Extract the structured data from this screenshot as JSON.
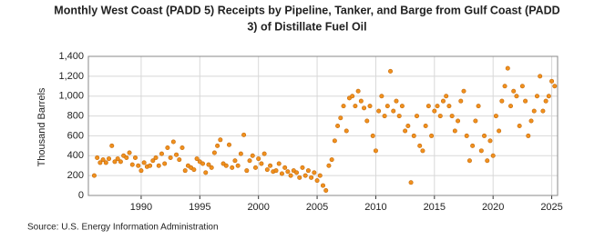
{
  "chart_data": {
    "type": "scatter",
    "title": "Monthly West Coast (PADD 5) Receipts by Pipeline, Tanker, and Barge from Gulf Coast (PADD 3) of Distillate Fuel Oil",
    "ylabel": "Thousand Barrels",
    "source": "Source: U.S. Energy Information Administration",
    "color": "#f0901e",
    "grid": true,
    "xlim": [
      1985.5,
      2025.5
    ],
    "ylim": [
      0,
      1400
    ],
    "xticks": [
      1990,
      1995,
      2000,
      2005,
      2010,
      2015,
      2020,
      2025
    ],
    "yticks": [
      0,
      200,
      400,
      600,
      800,
      {
        "value": 1000,
        "label": "1,000"
      },
      {
        "value": 1200,
        "label": "1,200"
      },
      {
        "value": 1400,
        "label": "1,400"
      }
    ],
    "x": [
      1986,
      1986.25,
      1986.5,
      1986.75,
      1987,
      1987.25,
      1987.5,
      1987.75,
      1988,
      1988.25,
      1988.5,
      1988.75,
      1989,
      1989.25,
      1989.5,
      1989.75,
      1990,
      1990.25,
      1990.5,
      1990.75,
      1991,
      1991.25,
      1991.5,
      1991.75,
      1992,
      1992.25,
      1992.5,
      1992.75,
      1993,
      1993.25,
      1993.5,
      1993.75,
      1994,
      1994.25,
      1994.5,
      1994.75,
      1995,
      1995.25,
      1995.5,
      1995.75,
      1996,
      1996.25,
      1996.5,
      1996.75,
      1997,
      1997.25,
      1997.5,
      1997.75,
      1998,
      1998.25,
      1998.5,
      1998.75,
      1999,
      1999.25,
      1999.5,
      1999.75,
      2000,
      2000.25,
      2000.5,
      2000.75,
      2001,
      2001.25,
      2001.5,
      2001.75,
      2002,
      2002.25,
      2002.5,
      2002.75,
      2003,
      2003.25,
      2003.5,
      2003.75,
      2004,
      2004.25,
      2004.5,
      2004.75,
      2005,
      2005.25,
      2005.5,
      2005.75,
      2006,
      2006.25,
      2006.5,
      2006.75,
      2007,
      2007.25,
      2007.5,
      2007.75,
      2008,
      2008.25,
      2008.5,
      2008.75,
      2009,
      2009.25,
      2009.5,
      2009.75,
      2010,
      2010.25,
      2010.5,
      2010.75,
      2011,
      2011.25,
      2011.5,
      2011.75,
      2012,
      2012.25,
      2012.5,
      2012.75,
      2013,
      2013.25,
      2013.5,
      2013.75,
      2014,
      2014.25,
      2014.5,
      2014.75,
      2015,
      2015.25,
      2015.5,
      2015.75,
      2016,
      2016.25,
      2016.5,
      2016.75,
      2017,
      2017.25,
      2017.5,
      2017.75,
      2018,
      2018.25,
      2018.5,
      2018.75,
      2019,
      2019.25,
      2019.5,
      2019.75,
      2020,
      2020.25,
      2020.5,
      2020.75,
      2021,
      2021.25,
      2021.5,
      2021.75,
      2022,
      2022.25,
      2022.5,
      2022.75,
      2023,
      2023.25,
      2023.5,
      2023.75,
      2024,
      2024.25,
      2024.5,
      2024.75,
      2025,
      2025.25
    ],
    "values": [
      200,
      380,
      330,
      360,
      330,
      370,
      500,
      340,
      370,
      340,
      400,
      380,
      430,
      310,
      380,
      300,
      250,
      330,
      290,
      300,
      350,
      380,
      300,
      420,
      320,
      480,
      380,
      540,
      410,
      360,
      480,
      250,
      300,
      280,
      260,
      370,
      340,
      320,
      230,
      310,
      280,
      430,
      500,
      560,
      320,
      300,
      510,
      280,
      350,
      300,
      420,
      610,
      250,
      350,
      400,
      280,
      370,
      320,
      420,
      260,
      300,
      240,
      250,
      320,
      220,
      280,
      240,
      200,
      250,
      230,
      180,
      280,
      200,
      250,
      180,
      230,
      150,
      200,
      100,
      50,
      300,
      360,
      550,
      700,
      780,
      900,
      650,
      980,
      1000,
      900,
      1050,
      950,
      880,
      750,
      900,
      600,
      450,
      850,
      1000,
      800,
      900,
      1250,
      850,
      950,
      800,
      900,
      650,
      700,
      130,
      600,
      800,
      500,
      450,
      700,
      900,
      600,
      850,
      900,
      800,
      950,
      1000,
      900,
      800,
      650,
      750,
      950,
      1050,
      600,
      350,
      500,
      750,
      900,
      450,
      600,
      350,
      550,
      400,
      800,
      650,
      950,
      1100,
      1280,
      900,
      1050,
      1000,
      700,
      1100,
      950,
      600,
      750,
      850,
      1000,
      1200,
      850,
      950,
      1000,
      1150,
      1100
    ]
  }
}
